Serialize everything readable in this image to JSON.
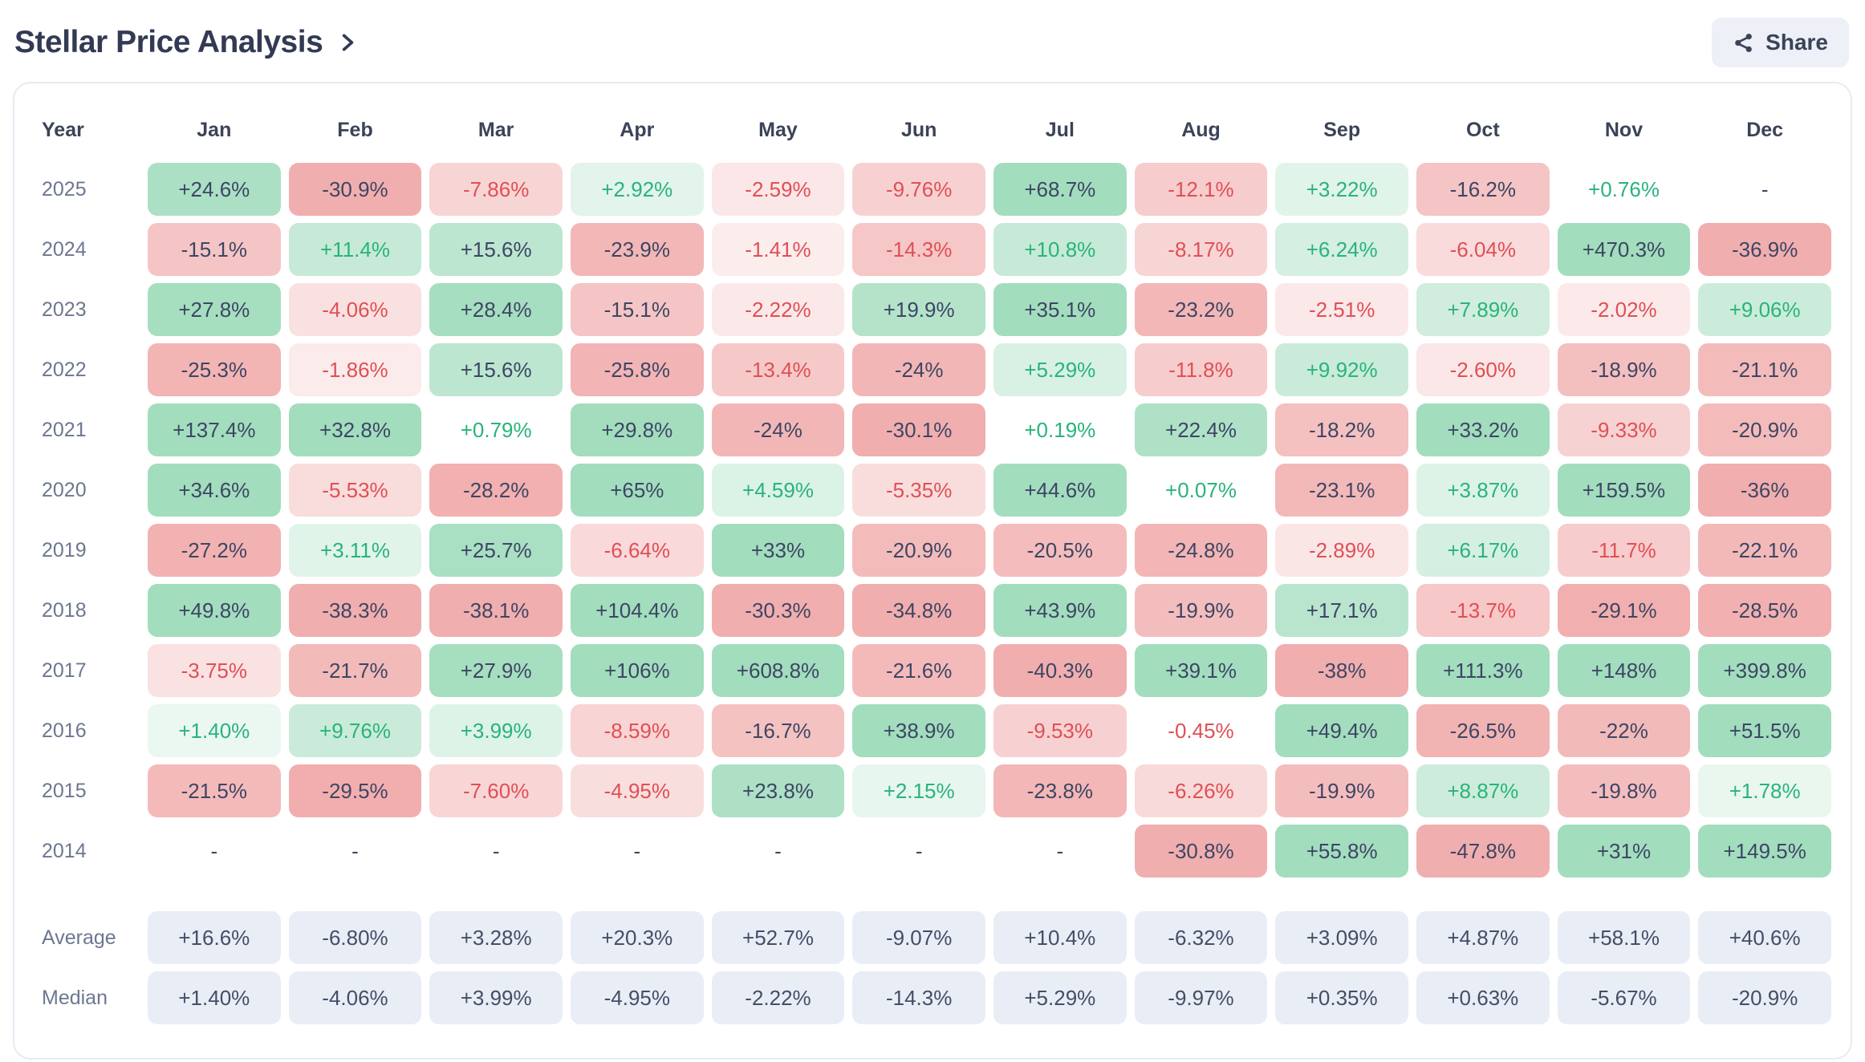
{
  "header": {
    "title": "Stellar Price Analysis",
    "share_label": "Share"
  },
  "colors": {
    "positive_text": "#29b37c",
    "negative_text": "#e04f55",
    "dark_text": "#3d4663",
    "positive_bg_base": "77,189,130",
    "negative_bg_base": "229,99,99",
    "summary_bg": "#e9edf6",
    "summary_text": "#454e66"
  },
  "table": {
    "columns": [
      "Year",
      "Jan",
      "Feb",
      "Mar",
      "Apr",
      "May",
      "Jun",
      "Jul",
      "Aug",
      "Sep",
      "Oct",
      "Nov",
      "Dec"
    ],
    "rows": [
      {
        "year": "2025",
        "values": [
          "+24.6%",
          "-30.9%",
          "-7.86%",
          "+2.92%",
          "-2.59%",
          "-9.76%",
          "+68.7%",
          "-12.1%",
          "+3.22%",
          "-16.2%",
          "+0.76%",
          "-"
        ]
      },
      {
        "year": "2024",
        "values": [
          "-15.1%",
          "+11.4%",
          "+15.6%",
          "-23.9%",
          "-1.41%",
          "-14.3%",
          "+10.8%",
          "-8.17%",
          "+6.24%",
          "-6.04%",
          "+470.3%",
          "-36.9%"
        ]
      },
      {
        "year": "2023",
        "values": [
          "+27.8%",
          "-4.06%",
          "+28.4%",
          "-15.1%",
          "-2.22%",
          "+19.9%",
          "+35.1%",
          "-23.2%",
          "-2.51%",
          "+7.89%",
          "-2.02%",
          "+9.06%"
        ]
      },
      {
        "year": "2022",
        "values": [
          "-25.3%",
          "-1.86%",
          "+15.6%",
          "-25.8%",
          "-13.4%",
          "-24%",
          "+5.29%",
          "-11.8%",
          "+9.92%",
          "-2.60%",
          "-18.9%",
          "-21.1%"
        ]
      },
      {
        "year": "2021",
        "values": [
          "+137.4%",
          "+32.8%",
          "+0.79%",
          "+29.8%",
          "-24%",
          "-30.1%",
          "+0.19%",
          "+22.4%",
          "-18.2%",
          "+33.2%",
          "-9.33%",
          "-20.9%"
        ]
      },
      {
        "year": "2020",
        "values": [
          "+34.6%",
          "-5.53%",
          "-28.2%",
          "+65%",
          "+4.59%",
          "-5.35%",
          "+44.6%",
          "+0.07%",
          "-23.1%",
          "+3.87%",
          "+159.5%",
          "-36%"
        ]
      },
      {
        "year": "2019",
        "values": [
          "-27.2%",
          "+3.11%",
          "+25.7%",
          "-6.64%",
          "+33%",
          "-20.9%",
          "-20.5%",
          "-24.8%",
          "-2.89%",
          "+6.17%",
          "-11.7%",
          "-22.1%"
        ]
      },
      {
        "year": "2018",
        "values": [
          "+49.8%",
          "-38.3%",
          "-38.1%",
          "+104.4%",
          "-30.3%",
          "-34.8%",
          "+43.9%",
          "-19.9%",
          "+17.1%",
          "-13.7%",
          "-29.1%",
          "-28.5%"
        ]
      },
      {
        "year": "2017",
        "values": [
          "-3.75%",
          "-21.7%",
          "+27.9%",
          "+106%",
          "+608.8%",
          "-21.6%",
          "-40.3%",
          "+39.1%",
          "-38%",
          "+111.3%",
          "+148%",
          "+399.8%"
        ]
      },
      {
        "year": "2016",
        "values": [
          "+1.40%",
          "+9.76%",
          "+3.99%",
          "-8.59%",
          "-16.7%",
          "+38.9%",
          "-9.53%",
          "-0.45%",
          "+49.4%",
          "-26.5%",
          "-22%",
          "+51.5%"
        ]
      },
      {
        "year": "2015",
        "values": [
          "-21.5%",
          "-29.5%",
          "-7.60%",
          "-4.95%",
          "+23.8%",
          "+2.15%",
          "-23.8%",
          "-6.26%",
          "-19.9%",
          "+8.87%",
          "-19.8%",
          "+1.78%"
        ]
      },
      {
        "year": "2014",
        "values": [
          "-",
          "-",
          "-",
          "-",
          "-",
          "-",
          "-",
          "-30.8%",
          "+55.8%",
          "-47.8%",
          "+31%",
          "+149.5%"
        ]
      }
    ],
    "summary_rows": [
      {
        "label": "Average",
        "values": [
          "+16.6%",
          "-6.80%",
          "+3.28%",
          "+20.3%",
          "+52.7%",
          "-9.07%",
          "+10.4%",
          "-6.32%",
          "+3.09%",
          "+4.87%",
          "+58.1%",
          "+40.6%"
        ]
      },
      {
        "label": "Median",
        "values": [
          "+1.40%",
          "-4.06%",
          "+3.99%",
          "-4.95%",
          "-2.22%",
          "-14.3%",
          "+5.29%",
          "-9.97%",
          "+0.35%",
          "+0.63%",
          "-5.67%",
          "-20.9%"
        ]
      }
    ]
  }
}
